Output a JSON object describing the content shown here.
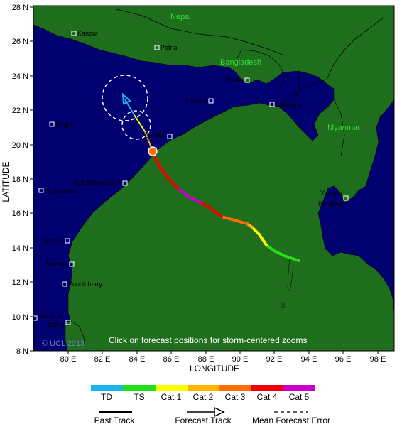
{
  "axes": {
    "y_title": "LATITUDE",
    "x_title": "LONGITUDE",
    "lat_ticks": [
      "28 N",
      "26 N",
      "24 N",
      "22 N",
      "20 N",
      "18 N",
      "16 N",
      "14 N",
      "12 N",
      "10 N",
      "8 N"
    ],
    "lon_ticks": [
      "80 E",
      "82 E",
      "84 E",
      "86 E",
      "88 E",
      "90 E",
      "92 E",
      "94 E",
      "96 E",
      "98 E"
    ]
  },
  "countries": {
    "nepal": "Nepal",
    "bangladesh": "Bangladesh",
    "myanmar": "Myanmar"
  },
  "cities": {
    "kanpur": "Kanpur",
    "patna": "Patna",
    "dhaka": "Dhaka",
    "kolkata": "Kolkata",
    "chittagong": "Chittagong",
    "nagpur": "Nagpur",
    "cuttack": "Cuttack",
    "vishakhapatnam": "Vishakhapatnam",
    "hyderabad": "Hyderabad",
    "yangon": "Yangon",
    "rangoon": "Rangoon",
    "nellore": "Nellore",
    "madras": "Madras",
    "pondicherry": "Pondicherry",
    "madurai": "Madurai",
    "jaffna": "Jaffna"
  },
  "overlay": {
    "hint": "Click on forecast positions for storm-centered zooms",
    "copyright": "© UCL 2013"
  },
  "legend": {
    "categories": [
      {
        "label": "TD",
        "color": "#19b4f0"
      },
      {
        "label": "TS",
        "color": "#22e018"
      },
      {
        "label": "Cat 1",
        "color": "#ffff00"
      },
      {
        "label": "Cat 2",
        "color": "#ffb400"
      },
      {
        "label": "Cat 3",
        "color": "#ff6e00"
      },
      {
        "label": "Cat 4",
        "color": "#f00000"
      },
      {
        "label": "Cat 5",
        "color": "#c800c8"
      }
    ],
    "past_track": "Past Track",
    "forecast_track": "Forecast Track",
    "mean_error": "Mean Forecast Error"
  },
  "colors": {
    "ocean": "#000070",
    "land": "#1e6e1e",
    "border": "#000000"
  }
}
